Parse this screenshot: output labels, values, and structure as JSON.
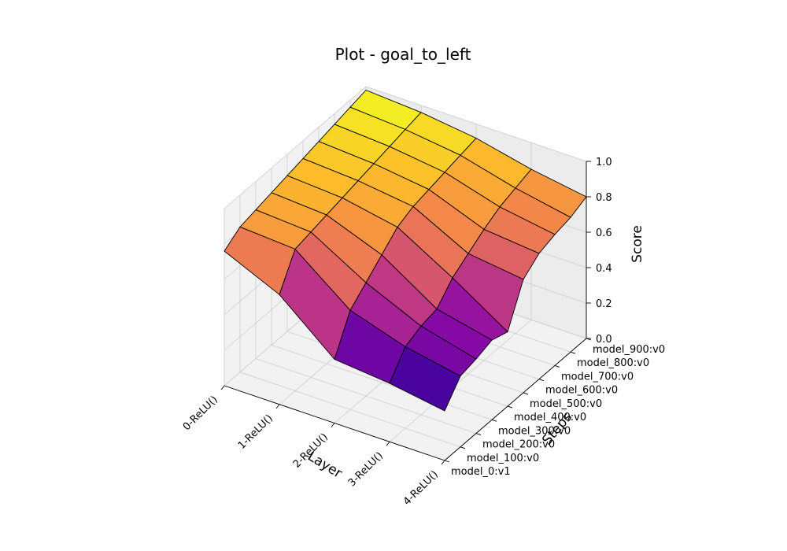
{
  "chart_data": {
    "type": "surface3d",
    "title": "Plot - goal_to_left",
    "xlabel": "Layer",
    "ylabel": "Steps",
    "zlabel": "Score",
    "colormap": "plasma",
    "zlim": [
      0,
      1
    ],
    "z_ticks": [
      "0.0",
      "0.2",
      "0.4",
      "0.6",
      "0.8",
      "1.0"
    ],
    "layers": [
      "0-ReLU()",
      "1-ReLU()",
      "2-ReLU()",
      "3-ReLU()",
      "4-ReLU()"
    ],
    "steps": [
      "model_0:v1",
      "model_100:v0",
      "model_200:v0",
      "model_300:v0",
      "model_400:v0",
      "model_500:v0",
      "model_600:v0",
      "model_700:v0",
      "model_800:v0",
      "model_900:v0"
    ],
    "scores": [
      [
        0.76,
        0.82,
        0.84,
        0.86,
        0.88,
        0.9,
        0.92,
        0.94,
        0.96,
        0.98
      ],
      [
        0.62,
        0.8,
        0.82,
        0.84,
        0.86,
        0.88,
        0.9,
        0.92,
        0.94,
        0.96
      ],
      [
        0.36,
        0.56,
        0.64,
        0.72,
        0.8,
        0.84,
        0.86,
        0.88,
        0.9,
        0.92
      ],
      [
        0.33,
        0.46,
        0.5,
        0.52,
        0.62,
        0.68,
        0.74,
        0.79,
        0.82,
        0.85
      ],
      [
        0.28,
        0.4,
        0.42,
        0.45,
        0.42,
        0.64,
        0.71,
        0.74,
        0.76,
        0.8
      ]
    ]
  }
}
